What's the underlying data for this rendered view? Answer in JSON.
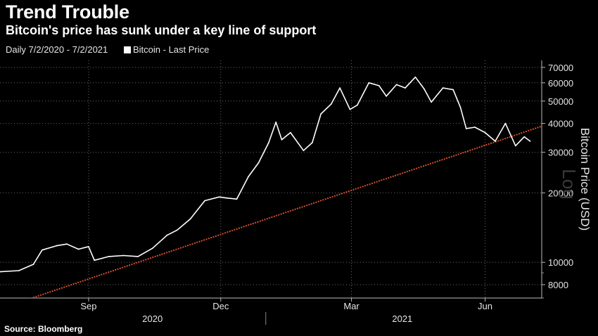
{
  "chart_data": {
    "type": "line",
    "title": "Trend Trouble",
    "subtitle": "Bitcoin's price has sunk under a key line of support",
    "date_range": "Daily 7/2/2020 - 7/2/2021",
    "legend": [
      "Bitcoin - Last Price"
    ],
    "ylabel": "Bitcoin Price (USD)",
    "yscale_label": "Log",
    "ylim": [
      7000,
      75000
    ],
    "yticks": [
      8000,
      10000,
      20000,
      30000,
      40000,
      50000,
      60000,
      70000
    ],
    "xticks": [
      {
        "date": "2020-09-01",
        "label": "Sep"
      },
      {
        "date": "2020-12-01",
        "label": "Dec"
      },
      {
        "date": "2021-03-01",
        "label": "Mar"
      },
      {
        "date": "2021-06-01",
        "label": "Jun"
      }
    ],
    "years": [
      {
        "label": "2020",
        "date": "2020-10-15"
      },
      {
        "label": "2021",
        "date": "2021-04-05"
      }
    ],
    "xlim": [
      "2020-07-02",
      "2021-07-10"
    ],
    "series": [
      {
        "name": "Bitcoin - Last Price",
        "color": "#ffffff",
        "x": [
          "2020-07-02",
          "2020-07-15",
          "2020-07-25",
          "2020-07-31",
          "2020-08-10",
          "2020-08-17",
          "2020-08-25",
          "2020-09-01",
          "2020-09-05",
          "2020-09-15",
          "2020-09-25",
          "2020-10-05",
          "2020-10-15",
          "2020-10-25",
          "2020-11-01",
          "2020-11-10",
          "2020-11-20",
          "2020-11-30",
          "2020-12-05",
          "2020-12-12",
          "2020-12-20",
          "2020-12-27",
          "2021-01-03",
          "2021-01-08",
          "2021-01-12",
          "2021-01-18",
          "2021-01-27",
          "2021-02-02",
          "2021-02-08",
          "2021-02-15",
          "2021-02-21",
          "2021-02-28",
          "2021-03-05",
          "2021-03-13",
          "2021-03-20",
          "2021-03-25",
          "2021-04-01",
          "2021-04-07",
          "2021-04-14",
          "2021-04-20",
          "2021-04-25",
          "2021-05-03",
          "2021-05-10",
          "2021-05-15",
          "2021-05-19",
          "2021-05-25",
          "2021-06-01",
          "2021-06-08",
          "2021-06-15",
          "2021-06-22",
          "2021-06-28",
          "2021-07-02"
        ],
        "y": [
          9100,
          9200,
          9800,
          11300,
          11800,
          12000,
          11400,
          11700,
          10200,
          10600,
          10700,
          10600,
          11500,
          13100,
          13800,
          15400,
          18500,
          19200,
          19000,
          18800,
          23500,
          27000,
          33000,
          40500,
          34000,
          36500,
          30500,
          33000,
          44000,
          48500,
          57000,
          46000,
          48000,
          60000,
          58300,
          52500,
          58900,
          57000,
          63500,
          56500,
          49500,
          57000,
          56000,
          47000,
          38000,
          38500,
          36500,
          33500,
          40000,
          32000,
          35000,
          33500
        ]
      }
    ],
    "trendline": {
      "name": "support line",
      "color": "#d4502b",
      "x": [
        "2020-07-12",
        "2021-07-10"
      ],
      "y": [
        6600,
        38900
      ]
    }
  },
  "footer": {
    "source": "Source: Bloomberg"
  }
}
